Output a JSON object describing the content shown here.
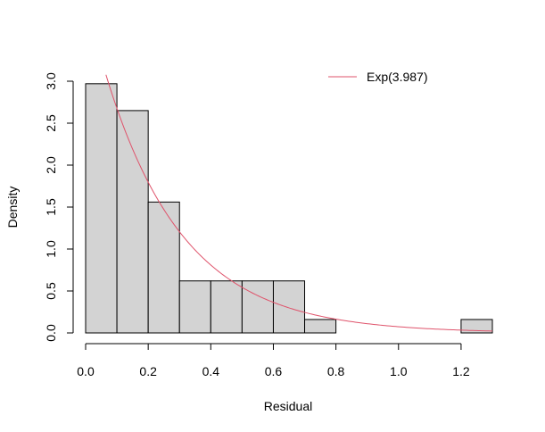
{
  "chart_data": {
    "type": "bar",
    "subtype": "histogram",
    "title": "",
    "xlabel": "Residual",
    "ylabel": "Density",
    "xlim": [
      0.0,
      1.3
    ],
    "ylim": [
      0.0,
      3.0
    ],
    "x_ticks": [
      0.0,
      0.2,
      0.4,
      0.6,
      0.8,
      1.0,
      1.2
    ],
    "x_tick_labels": [
      "0.0",
      "0.2",
      "0.4",
      "0.6",
      "0.8",
      "1.0",
      "1.2"
    ],
    "y_ticks": [
      0.0,
      0.5,
      1.0,
      1.5,
      2.0,
      2.5,
      3.0
    ],
    "y_tick_labels": [
      "0.0",
      "0.5",
      "1.0",
      "1.5",
      "2.0",
      "2.5",
      "3.0"
    ],
    "bins": [
      {
        "start": 0.0,
        "end": 0.1,
        "density": 2.97
      },
      {
        "start": 0.1,
        "end": 0.2,
        "density": 2.65
      },
      {
        "start": 0.2,
        "end": 0.3,
        "density": 1.56
      },
      {
        "start": 0.3,
        "end": 0.4,
        "density": 0.62
      },
      {
        "start": 0.4,
        "end": 0.5,
        "density": 0.62
      },
      {
        "start": 0.5,
        "end": 0.6,
        "density": 0.62
      },
      {
        "start": 0.6,
        "end": 0.7,
        "density": 0.62
      },
      {
        "start": 0.7,
        "end": 0.8,
        "density": 0.16
      },
      {
        "start": 0.8,
        "end": 0.9,
        "density": 0.0
      },
      {
        "start": 0.9,
        "end": 1.0,
        "density": 0.0
      },
      {
        "start": 1.0,
        "end": 1.1,
        "density": 0.0
      },
      {
        "start": 1.1,
        "end": 1.2,
        "density": 0.0
      },
      {
        "start": 1.2,
        "end": 1.3,
        "density": 0.16
      }
    ],
    "bar_fill": "#d3d3d3",
    "bar_stroke": "#000000",
    "curve": {
      "name": "Exp(3.987)",
      "rate": 3.987,
      "x_range": [
        0.065,
        1.3
      ],
      "color": "#df536b"
    },
    "legend": {
      "position": "top-right",
      "entries": [
        "Exp(3.987)"
      ]
    },
    "grid": false
  }
}
